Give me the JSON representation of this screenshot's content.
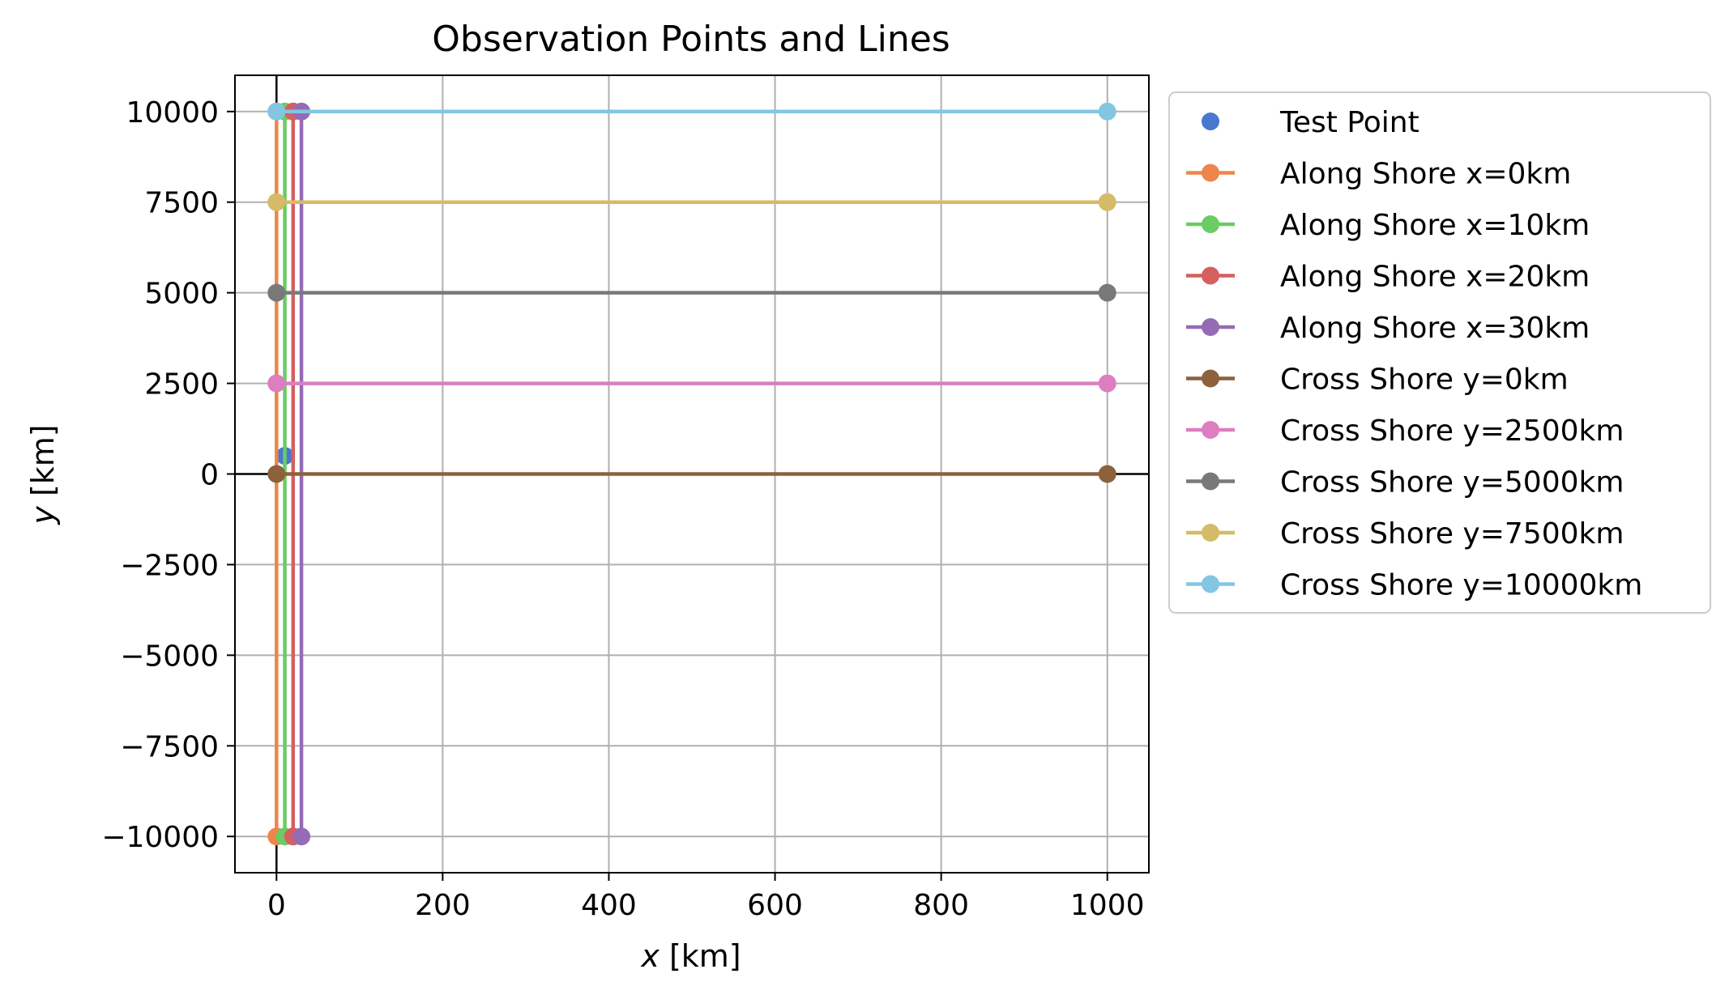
{
  "chart_data": {
    "type": "line",
    "title": "Observation Points and Lines",
    "xlabel_var": "x",
    "xlabel_unit": " [km]",
    "ylabel_var": "y",
    "ylabel_unit": " [km]",
    "xlim": [
      -50,
      1050
    ],
    "ylim": [
      -11000,
      11000
    ],
    "xticks": [
      0,
      200,
      400,
      600,
      800,
      1000
    ],
    "yticks": [
      10000,
      7500,
      5000,
      2500,
      0,
      -2500,
      -5000,
      -7500,
      -10000
    ],
    "xtick_labels": [
      "0",
      "200",
      "400",
      "600",
      "800",
      "1000"
    ],
    "ytick_labels": [
      "10000",
      "7500",
      "5000",
      "2500",
      "0",
      "−2500",
      "−5000",
      "−7500",
      "−10000"
    ],
    "grid": true,
    "zero_lines": true,
    "legend_position": "outside right, top",
    "series": [
      {
        "name": "Test Point",
        "color": "#4878d0",
        "marker": "circle",
        "line": false,
        "points": [
          [
            10,
            500
          ]
        ]
      },
      {
        "name": "Along Shore x=0km",
        "color": "#ee854a",
        "marker": "circle",
        "line": true,
        "points": [
          [
            0,
            -10000
          ],
          [
            0,
            10000
          ]
        ]
      },
      {
        "name": "Along Shore x=10km",
        "color": "#6acc64",
        "marker": "circle",
        "line": true,
        "points": [
          [
            10,
            -10000
          ],
          [
            10,
            10000
          ]
        ]
      },
      {
        "name": "Along Shore x=20km",
        "color": "#d65f5f",
        "marker": "circle",
        "line": true,
        "points": [
          [
            20,
            -10000
          ],
          [
            20,
            10000
          ]
        ]
      },
      {
        "name": "Along Shore x=30km",
        "color": "#956cb4",
        "marker": "circle",
        "line": true,
        "points": [
          [
            30,
            -10000
          ],
          [
            30,
            10000
          ]
        ]
      },
      {
        "name": "Cross Shore y=0km",
        "color": "#8c613c",
        "marker": "circle",
        "line": true,
        "points": [
          [
            0,
            0
          ],
          [
            1000,
            0
          ]
        ]
      },
      {
        "name": "Cross Shore y=2500km",
        "color": "#dc7ec0",
        "marker": "circle",
        "line": true,
        "points": [
          [
            0,
            2500
          ],
          [
            1000,
            2500
          ]
        ]
      },
      {
        "name": "Cross Shore y=5000km",
        "color": "#797979",
        "marker": "circle",
        "line": true,
        "points": [
          [
            0,
            5000
          ],
          [
            1000,
            5000
          ]
        ]
      },
      {
        "name": "Cross Shore y=7500km",
        "color": "#d5bb67",
        "marker": "circle",
        "line": true,
        "points": [
          [
            0,
            7500
          ],
          [
            1000,
            7500
          ]
        ]
      },
      {
        "name": "Cross Shore y=10000km",
        "color": "#82c6e2",
        "marker": "circle",
        "line": true,
        "points": [
          [
            0,
            10000
          ],
          [
            1000,
            10000
          ]
        ]
      }
    ]
  }
}
